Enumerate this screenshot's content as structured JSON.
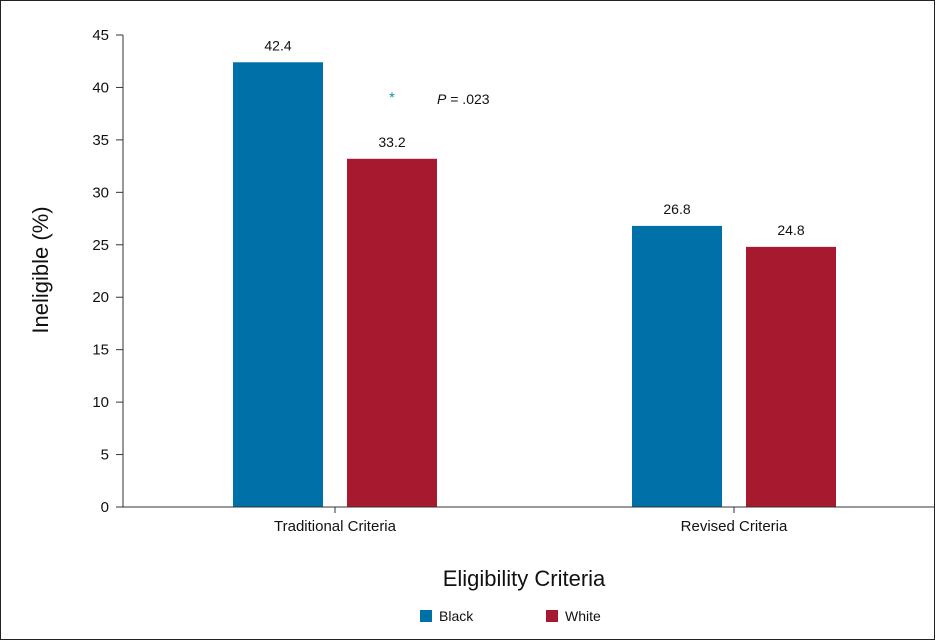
{
  "chart_data": {
    "type": "bar",
    "xlabel": "Eligibility Criteria",
    "ylabel": "Ineligible (%)",
    "categories": [
      "Traditional Criteria",
      "Revised Criteria"
    ],
    "series": [
      {
        "name": "Black",
        "color": "#0070A8",
        "values": [
          42.4,
          26.8
        ]
      },
      {
        "name": "White",
        "color": "#A6192E",
        "values": [
          33.2,
          24.8
        ]
      }
    ],
    "ylim": [
      0,
      45
    ],
    "yticks": [
      0,
      5,
      10,
      15,
      20,
      25,
      30,
      35,
      40,
      45
    ],
    "data_labels": [
      [
        "42.4",
        "26.8"
      ],
      [
        "33.2",
        "24.8"
      ]
    ],
    "annotation": {
      "star": "*",
      "text_italic": "P",
      "text_rest": " = .023",
      "star_color": "#0E8C9A"
    },
    "legend_position": "bottom-center",
    "grid": false
  }
}
